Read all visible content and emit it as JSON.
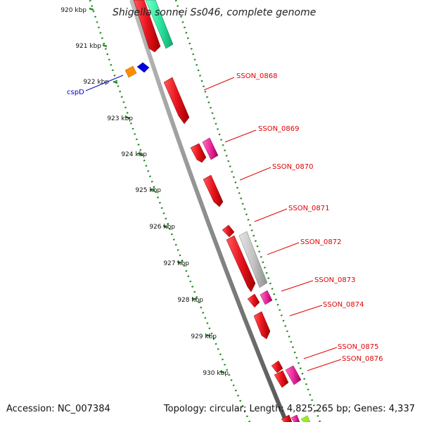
{
  "title": "Shigella sonnei Ss046, complete genome",
  "accession": "Accession: NC_007384",
  "topology": "Topology: circular; Length: 4,825,265 bp; Genes: 4,337",
  "colors": {
    "backbone": "#8c8c8c",
    "tick_green": "#1f8a1f",
    "gene_red": "#e8141e",
    "gene_pink": "#ee2a9a",
    "gene_grey": "#c4c4c4",
    "gene_teal": "#2ee8a0",
    "gene_orange": "#ff8c00",
    "gene_blue": "#0000e0",
    "gene_lime": "#99ee22",
    "label_red": "#e00000",
    "label_blue": "#0000cc"
  },
  "kbp_labels": [
    "920 kbp",
    "921 kbp",
    "922 kbp",
    "923 kbp",
    "924 kbp",
    "925 kbp",
    "926 kbp",
    "927 kbp",
    "928 kbp",
    "929 kbp",
    "930 kbp"
  ],
  "gene_labels": [
    "SSON_0868",
    "SSON_0869",
    "SSON_0870",
    "SSON_0871",
    "SSON_0872",
    "SSON_0873",
    "SSON_0874",
    "SSON_0875",
    "SSON_0876"
  ],
  "left_gene_label": "cspD"
}
